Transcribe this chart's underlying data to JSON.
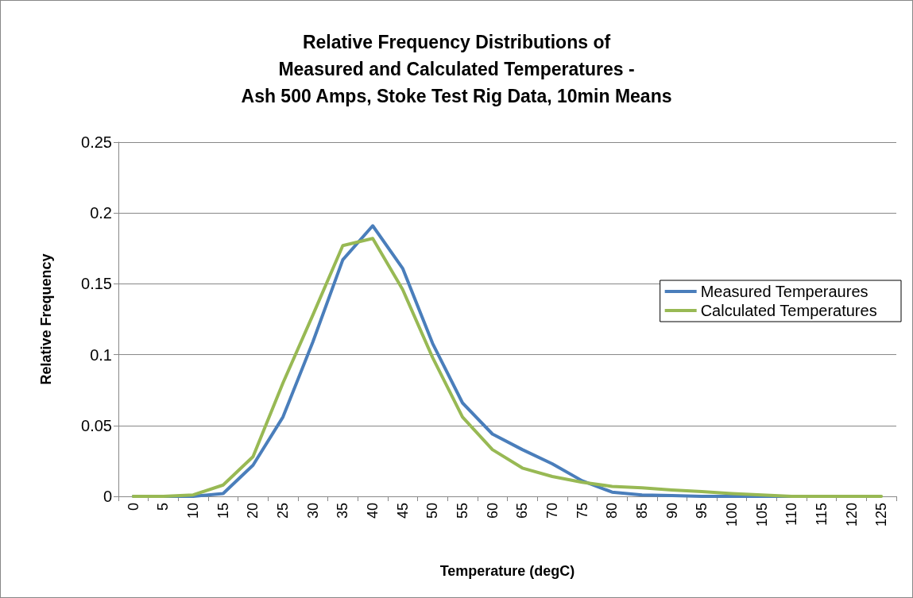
{
  "chart_data": {
    "type": "line",
    "title": "Relative Frequency Distributions of\nMeasured and Calculated Temperatures -\nAsh 500 Amps, Stoke Test Rig Data, 10min Means",
    "xlabel": "Temperature (degC)",
    "ylabel": "Relative Frequency",
    "categories": [
      "0",
      "5",
      "10",
      "15",
      "20",
      "25",
      "30",
      "35",
      "40",
      "45",
      "50",
      "55",
      "60",
      "65",
      "70",
      "75",
      "80",
      "85",
      "90",
      "95",
      "100",
      "105",
      "110",
      "115",
      "120",
      "125"
    ],
    "series": [
      {
        "name": "Measured Temperaures",
        "color": "#4a7ebb",
        "values": [
          0,
          0,
          0,
          0.002,
          0.022,
          0.056,
          0.109,
          0.167,
          0.191,
          0.161,
          0.108,
          0.066,
          0.044,
          0.033,
          0.023,
          0.011,
          0.003,
          0.001,
          0.0005,
          0,
          0,
          0,
          0,
          0,
          null,
          null
        ]
      },
      {
        "name": "Calculated Temperatures",
        "color": "#98b954",
        "values": [
          0,
          0,
          0.001,
          0.008,
          0.028,
          0.08,
          0.128,
          0.177,
          0.182,
          0.146,
          0.098,
          0.056,
          0.033,
          0.02,
          0.014,
          0.01,
          0.007,
          0.006,
          0.0045,
          0.0033,
          0.002,
          0.001,
          0,
          0,
          0,
          0
        ]
      }
    ],
    "ylim": [
      0,
      0.25
    ],
    "yticks": [
      0,
      0.05,
      0.1,
      0.15,
      0.2,
      0.25
    ],
    "grid": "y",
    "legend": "right",
    "marker": "none"
  }
}
